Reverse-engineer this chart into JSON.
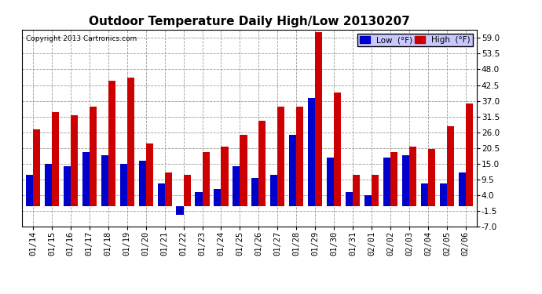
{
  "title": "Outdoor Temperature Daily High/Low 20130207",
  "copyright": "Copyright 2013 Cartronics.com",
  "legend_low": "Low  (°F)",
  "legend_high": "High  (°F)",
  "dates": [
    "01/14",
    "01/15",
    "01/16",
    "01/17",
    "01/18",
    "01/19",
    "01/20",
    "01/21",
    "01/22",
    "01/23",
    "01/24",
    "01/25",
    "01/26",
    "01/27",
    "01/28",
    "01/29",
    "01/30",
    "01/31",
    "02/01",
    "02/02",
    "02/03",
    "02/04",
    "02/05",
    "02/06"
  ],
  "low": [
    11,
    15,
    14,
    19,
    18,
    15,
    16,
    8,
    -3,
    5,
    6,
    14,
    10,
    11,
    25,
    38,
    17,
    5,
    4,
    17,
    18,
    8,
    8,
    12
  ],
  "high": [
    27,
    33,
    32,
    35,
    44,
    45,
    22,
    12,
    11,
    19,
    21,
    25,
    30,
    35,
    35,
    61,
    40,
    11,
    11,
    19,
    21,
    20,
    28,
    36
  ],
  "low_color": "#0000cc",
  "high_color": "#cc0000",
  "ylim": [
    -7.0,
    62.0
  ],
  "yticks": [
    -7.0,
    -1.5,
    4.0,
    9.5,
    15.0,
    20.5,
    26.0,
    31.5,
    37.0,
    42.5,
    48.0,
    53.5,
    59.0
  ],
  "background_color": "#ffffff",
  "plot_bg_color": "#ffffff",
  "grid_color": "#999999",
  "title_fontsize": 11,
  "tick_fontsize": 7.5,
  "bar_width": 0.38
}
